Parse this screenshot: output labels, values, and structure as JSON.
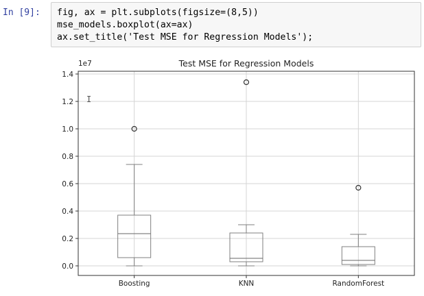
{
  "cell": {
    "prompt": "In [9]:",
    "code_lines": [
      "fig, ax = plt.subplots(figsize=(8,5))",
      "mse_models.boxplot(ax=ax)",
      "ax.set_title('Test MSE for Regression Models');"
    ]
  },
  "colors": {
    "box": "#7f7f7f",
    "grid": "#d4d4d4",
    "median": "#666666",
    "axes": "#333333"
  },
  "chart_data": {
    "type": "box",
    "title": "Test MSE for Regression Models",
    "offset_text": "1e7",
    "ylim": [
      -0.07,
      1.42
    ],
    "yticks": [
      "0.0",
      "0.2",
      "0.4",
      "0.6",
      "0.8",
      "1.0",
      "1.2",
      "1.4"
    ],
    "grid": true,
    "categories": [
      "Boosting",
      "KNN",
      "RandomForest"
    ],
    "series": [
      {
        "name": "Boosting",
        "whisker_low": 0.0,
        "q1": 0.06,
        "median": 0.235,
        "q3": 0.37,
        "whisker_high": 0.74,
        "outliers": [
          1.0
        ]
      },
      {
        "name": "KNN",
        "whisker_low": 0.0,
        "q1": 0.03,
        "median": 0.055,
        "q3": 0.24,
        "whisker_high": 0.3,
        "outliers": [
          1.34
        ]
      },
      {
        "name": "RandomForest",
        "whisker_low": 0.0,
        "q1": 0.01,
        "median": 0.04,
        "q3": 0.14,
        "whisker_high": 0.23,
        "outliers": [
          0.57
        ]
      }
    ]
  }
}
